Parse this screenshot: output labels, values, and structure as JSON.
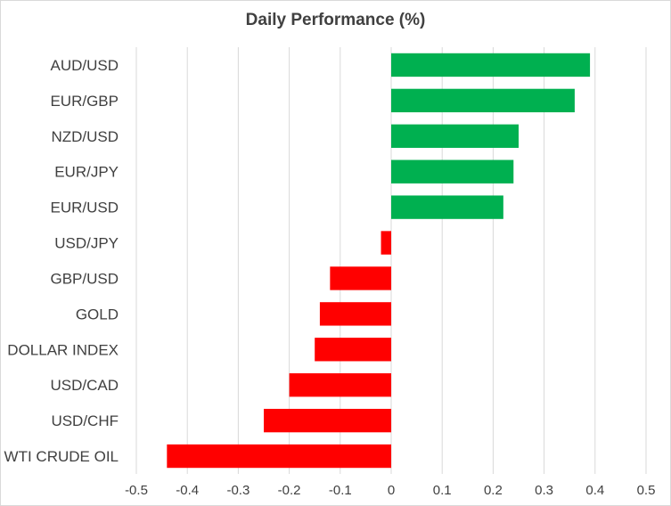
{
  "chart_data": {
    "type": "bar",
    "orientation": "horizontal",
    "title": "Daily Performance (%)",
    "xlabel": "",
    "ylabel": "",
    "xlim": [
      -0.5,
      0.5
    ],
    "x_ticks": [
      -0.5,
      -0.4,
      -0.3,
      -0.2,
      -0.1,
      0,
      0.1,
      0.2,
      0.3,
      0.4,
      0.5
    ],
    "x_tick_labels": [
      "-0.5",
      "-0.4",
      "-0.3",
      "-0.2",
      "-0.1",
      "0",
      "0.1",
      "0.2",
      "0.3",
      "0.4",
      "0.5"
    ],
    "grid": true,
    "categories": [
      "AUD/USD",
      "EUR/GBP",
      "NZD/USD",
      "EUR/JPY",
      "EUR/USD",
      "USD/JPY",
      "GBP/USD",
      "GOLD",
      "DOLLAR INDEX",
      "USD/CAD",
      "USD/CHF",
      "WTI CRUDE OIL"
    ],
    "values": [
      0.39,
      0.36,
      0.25,
      0.24,
      0.22,
      -0.02,
      -0.12,
      -0.14,
      -0.15,
      -0.2,
      -0.25,
      -0.44
    ],
    "colors": {
      "positive": "#00b050",
      "negative": "#ff0000",
      "grid": "#d9d9d9",
      "text": "#404040"
    }
  }
}
